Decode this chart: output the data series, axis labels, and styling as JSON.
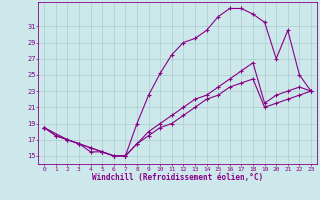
{
  "line1_x": [
    0,
    1,
    2,
    3,
    4,
    5,
    6,
    7,
    8,
    9,
    10,
    11,
    12,
    13,
    14,
    15,
    16,
    17,
    18,
    19,
    20,
    21,
    22,
    23
  ],
  "line1_y": [
    18.5,
    17.5,
    17.0,
    16.5,
    15.5,
    15.5,
    15.0,
    15.0,
    19.0,
    22.5,
    25.2,
    27.5,
    29.0,
    29.5,
    30.5,
    32.2,
    33.2,
    33.2,
    32.5,
    31.5,
    27.0,
    30.5,
    25.0,
    23.0
  ],
  "line2_x": [
    0,
    1,
    2,
    3,
    4,
    5,
    6,
    7,
    8,
    9,
    10,
    11,
    12,
    13,
    14,
    15,
    16,
    17,
    18,
    19,
    20,
    21,
    22,
    23
  ],
  "line2_y": [
    18.5,
    17.5,
    17.0,
    16.5,
    16.0,
    15.5,
    15.0,
    15.0,
    16.5,
    17.5,
    18.5,
    19.0,
    20.0,
    21.0,
    22.0,
    22.5,
    23.5,
    24.0,
    24.5,
    21.0,
    21.5,
    22.0,
    22.5,
    23.0
  ],
  "line3_x": [
    0,
    2,
    3,
    4,
    5,
    6,
    7,
    8,
    9,
    10,
    11,
    12,
    13,
    14,
    15,
    16,
    17,
    18,
    19,
    20,
    21,
    22,
    23
  ],
  "line3_y": [
    18.5,
    17.0,
    16.5,
    16.0,
    15.5,
    15.0,
    15.0,
    16.5,
    18.0,
    19.0,
    20.0,
    21.0,
    22.0,
    22.5,
    23.5,
    24.5,
    25.5,
    26.5,
    21.5,
    22.5,
    23.0,
    23.5,
    23.0
  ],
  "color": "#880088",
  "bg_color": "#cce8ea",
  "grid_color": "#aacccc",
  "xlabel": "Windchill (Refroidissement éolien,°C)",
  "xlim": [
    -0.5,
    23.5
  ],
  "ylim": [
    14.0,
    34.0
  ],
  "yticks": [
    15,
    17,
    19,
    21,
    23,
    25,
    27,
    29,
    31
  ],
  "xticks": [
    0,
    1,
    2,
    3,
    4,
    5,
    6,
    7,
    8,
    9,
    10,
    11,
    12,
    13,
    14,
    15,
    16,
    17,
    18,
    19,
    20,
    21,
    22,
    23
  ]
}
